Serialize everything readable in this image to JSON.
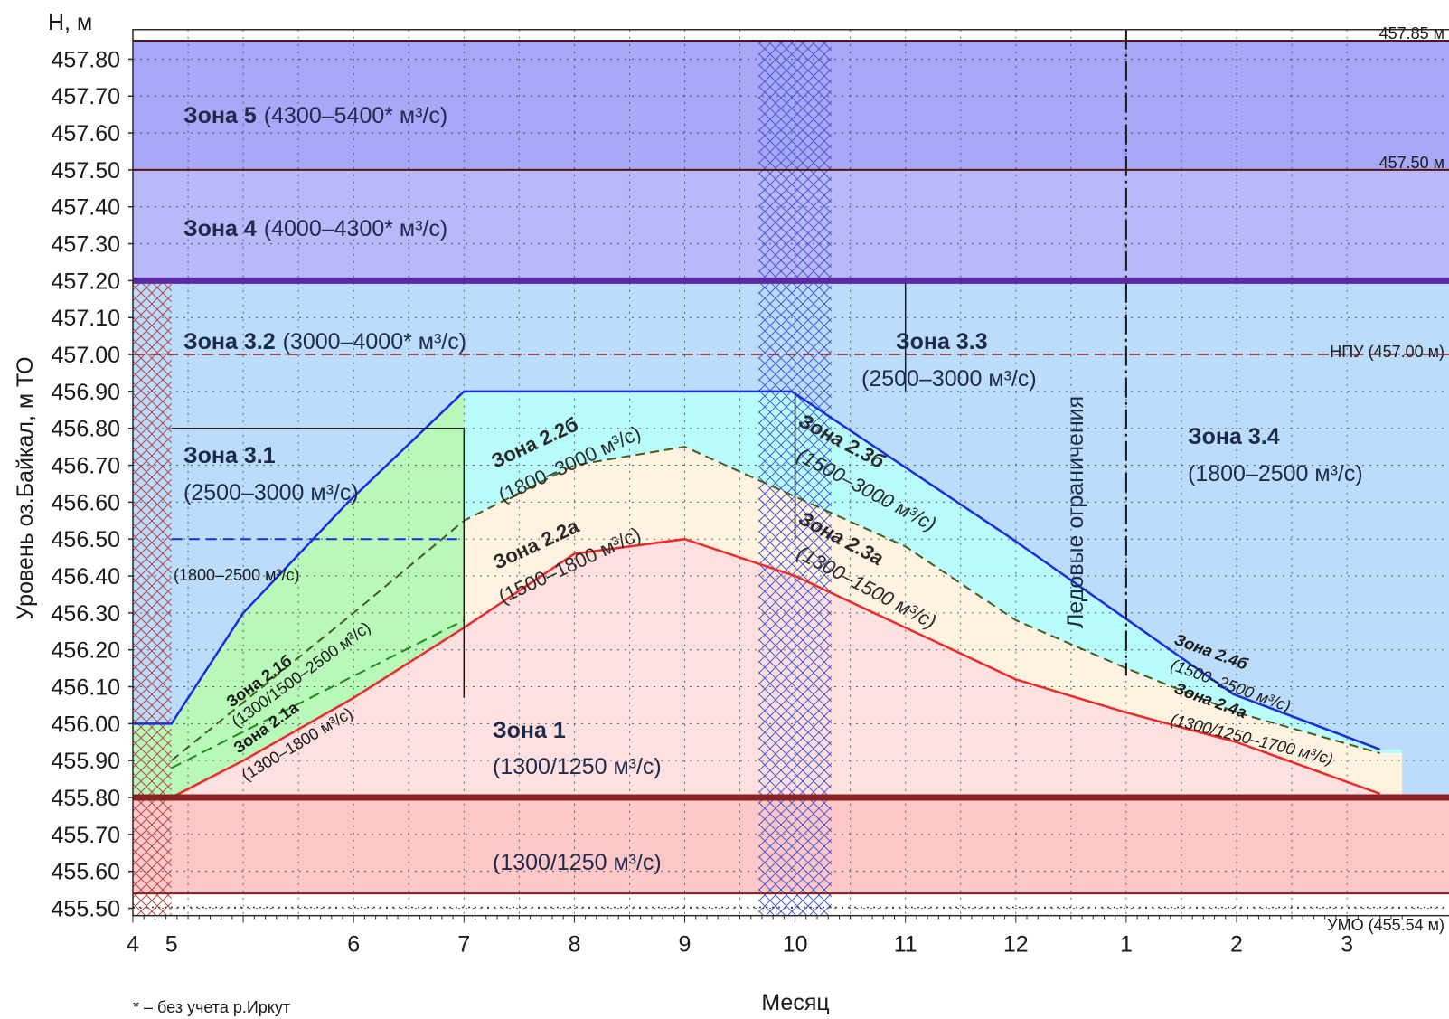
{
  "chart_data": {
    "type": "area",
    "title": "",
    "ylabel_units": "H, м",
    "ylabel": "Уровень оз.Байкал, м ТО",
    "xlabel": "Месяц",
    "footnote": "* – без учета р.Иркут",
    "x_ticks": [
      "4",
      "5",
      "6",
      "7",
      "8",
      "9",
      "10",
      "11",
      "12",
      "1",
      "2",
      "3",
      "4"
    ],
    "y_ticks": [
      "455.50",
      "455.60",
      "455.70",
      "455.80",
      "455.90",
      "456.00",
      "456.10",
      "456.20",
      "456.30",
      "456.40",
      "456.50",
      "456.60",
      "456.70",
      "456.80",
      "456.90",
      "457.00",
      "457.10",
      "457.20",
      "457.30",
      "457.40",
      "457.50",
      "457.60",
      "457.70",
      "457.80"
    ],
    "ylim": [
      455.48,
      457.88
    ],
    "grid": true,
    "reference_levels": [
      {
        "value": 457.85,
        "label": "457.85 м",
        "color": "#5a1010"
      },
      {
        "value": 457.5,
        "label": "457.50 м",
        "color": "#5a1010"
      },
      {
        "value": 457.2,
        "label": "",
        "color": "#5b2aa0"
      },
      {
        "value": 457.0,
        "label": "НПУ (457.00 м)",
        "color": "#8b1a1a"
      },
      {
        "value": 455.8,
        "label": "",
        "color": "#8b2020"
      },
      {
        "value": 455.54,
        "label": "УМО (455.54 м)",
        "color": "#8b1a1a"
      }
    ],
    "boundaries": [
      {
        "name": "upper",
        "color": "#1a2ee0",
        "points": [
          [
            4,
            456.0
          ],
          [
            4.35,
            456.0
          ],
          [
            5.0,
            456.3
          ],
          [
            5.95,
            456.6
          ],
          [
            7,
            456.9
          ],
          [
            9,
            456.9
          ],
          [
            9.97,
            456.9
          ],
          [
            11.97,
            456.5
          ],
          [
            13.97,
            456.08
          ],
          [
            15.3,
            455.93
          ]
        ]
      },
      {
        "name": "middle",
        "color": "#4a5a1e",
        "points": [
          [
            4.35,
            455.9
          ],
          [
            6,
            456.3
          ],
          [
            7,
            456.55
          ],
          [
            8,
            456.7
          ],
          [
            9,
            456.75
          ],
          [
            11,
            456.48
          ],
          [
            12,
            456.28
          ],
          [
            13,
            456.15
          ],
          [
            14,
            456.03
          ],
          [
            15.3,
            455.92
          ]
        ]
      },
      {
        "name": "lower",
        "color": "#ee2a2a",
        "points": [
          [
            4,
            455.8
          ],
          [
            4.35,
            455.8
          ],
          [
            5,
            455.9
          ],
          [
            6,
            456.07
          ],
          [
            7,
            456.26
          ],
          [
            8,
            456.46
          ],
          [
            9,
            456.5
          ],
          [
            10,
            456.4
          ],
          [
            11,
            456.26
          ],
          [
            12,
            456.12
          ],
          [
            13,
            456.03
          ],
          [
            14,
            455.95
          ],
          [
            15.3,
            455.81
          ]
        ]
      }
    ],
    "zones": [
      {
        "name": "Зона 5",
        "flow": "(4300–5400* м³/с)",
        "color": "#a8a8f8"
      },
      {
        "name": "Зона 4",
        "flow": "(4000–4300* м³/с)",
        "color": "#b8b8fa"
      },
      {
        "name": "Зона 3.2",
        "flow": "(3000–4000* м³/с)",
        "color": "#bcdcfc"
      },
      {
        "name": "Зона 3.3",
        "flow": "(2500–3000 м³/с)",
        "color": "#bcdcfc"
      },
      {
        "name": "Зона 3.1",
        "flow": "(2500–3000 м³/с)",
        "color": "#bcdcfc"
      },
      {
        "name": "Зона 3.4",
        "flow": "(1800–2500 м³/с)",
        "color": "#bcdcfc"
      },
      {
        "name": "",
        "flow": "(1800–2500 м³/с)",
        "color": "#bcdcfc"
      },
      {
        "name": "Зона 2.2б",
        "flow": "(1800–3000 м³/с)",
        "color": "#b8fcfc"
      },
      {
        "name": "Зона 2.3б",
        "flow": "(1500–3000 м³/с)",
        "color": "#b8fcfc"
      },
      {
        "name": "Зона 2.2а",
        "flow": "(1500–1800 м³/с)",
        "color": "#fff2e0"
      },
      {
        "name": "Зона 2.3а",
        "flow": "(1300–1500 м³/с)",
        "color": "#fff2e0"
      },
      {
        "name": "Зона 2.4б",
        "flow": "(1500–2500 м³/с)",
        "color": "#b8fcfc"
      },
      {
        "name": "Зона 2.4а",
        "flow": "(1300/1250–1700 м³/с)",
        "color": "#fff2e0"
      },
      {
        "name": "Зона 2.1б",
        "flow": "(1300/1500–2500 м³/с)",
        "color": "#b8f8b8"
      },
      {
        "name": "Зона 2.1а",
        "flow": "(1300–1800 м³/с)",
        "color": "#b8f8b8"
      },
      {
        "name": "Зона 1",
        "flow": "(1300/1250 м³/с)",
        "color": "#ffe0e0"
      },
      {
        "name": "",
        "flow": "(1300/1250 м³/с)",
        "color": "#ffc8c8"
      }
    ],
    "ice_label": "Ледовые ограничения"
  }
}
